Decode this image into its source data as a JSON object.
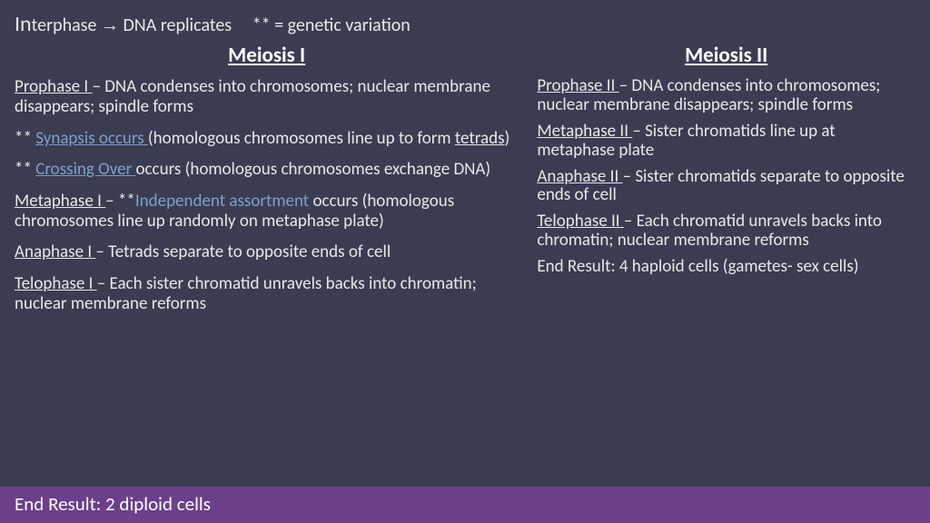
{
  "colors": {
    "background": "#3a3c52",
    "text": "#e8e8e8",
    "link": "#7da0c9",
    "footer_bg": "#6b3f8a",
    "footer_text": "#ffffff"
  },
  "header": {
    "prefix_big": "In",
    "prefix_rest": "terphase ",
    "arrow": "→",
    "after_arrow": " DNA replicates",
    "legend": "** = genetic variation"
  },
  "left": {
    "title": "Meiosis I",
    "p1_label": "Prophase I ",
    "p1_rest": "– DNA condenses into chromosomes; nuclear membrane disappears; spindle forms",
    "p2_stars": "** ",
    "p2_link": "Synapsis occurs ",
    "p2_rest_a": "(homologous chromosomes line up to form ",
    "p2_u": "tetrads",
    "p2_rest_b": ")",
    "p3_stars": "** ",
    "p3_link": "Crossing Over ",
    "p3_rest": "occurs (homologous chromosomes exchange DNA)",
    "p4_label": "Metaphase I ",
    "p4_dash": "– **",
    "p4_blue": "Independent assortment",
    "p4_rest": " occurs (homologous chromosomes line up randomly on metaphase plate)",
    "p5_label": "Anaphase I ",
    "p5_rest": "– Tetrads separate to opposite ends of cell",
    "p6_label": "Telophase I ",
    "p6_rest": "– Each sister chromatid unravels backs into chromatin; nuclear membrane reforms"
  },
  "right": {
    "title": "Meiosis II",
    "p1_label": "Prophase II ",
    "p1_rest": "– DNA condenses into chromosomes; nuclear membrane disappears; spindle forms",
    "p2_label": "Metaphase II ",
    "p2_rest": "– Sister chromatids line up at metaphase plate",
    "p3_label": "Anaphase II ",
    "p3_rest": "– Sister chromatids separate to opposite ends of cell",
    "p4_label": "Telophase II ",
    "p4_rest": "– Each chromatid unravels backs into chromatin; nuclear membrane reforms",
    "p5": "End Result: 4 haploid cells (gametes- sex cells)"
  },
  "footer": "End Result: 2 diploid cells"
}
